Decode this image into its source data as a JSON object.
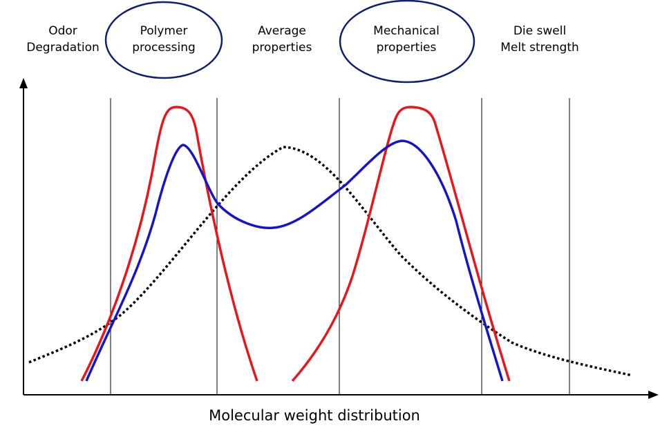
{
  "diagram": {
    "xlabel": "Molecular weight distribution",
    "regions": [
      {
        "label": "Odor\nDegradation",
        "highlighted": false
      },
      {
        "label": "Polymer\nprocessing",
        "highlighted": true
      },
      {
        "label": "Average\nproperties",
        "highlighted": false
      },
      {
        "label": "Mechanical\nproperties",
        "highlighted": true
      },
      {
        "label": "Die swell\nMelt strength",
        "highlighted": false
      }
    ],
    "curves": [
      {
        "id": "red-bimodal",
        "color": "#e8161b",
        "style": "solid"
      },
      {
        "id": "blue-bimodal",
        "color": "#1414cc",
        "style": "solid"
      },
      {
        "id": "black-unimodal",
        "color": "#000000",
        "style": "dotted"
      }
    ],
    "colors": {
      "ellipse": "#0e1f6e",
      "axis": "#000000"
    }
  }
}
